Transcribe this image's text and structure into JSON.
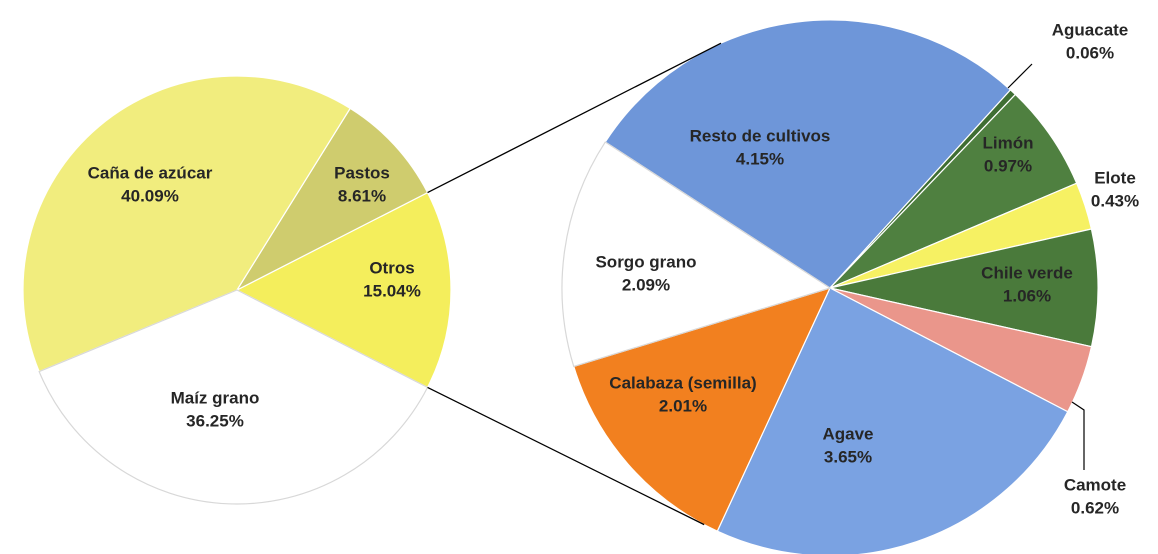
{
  "chart_data": [
    {
      "type": "pie",
      "categories": [
        "Otros",
        "Pastos",
        "Caña de azúcar",
        "Maíz grano"
      ],
      "values": [
        15.04,
        8.61,
        40.09,
        36.25
      ],
      "value_labels": [
        "15.04%",
        "8.61%",
        "40.09%",
        "36.25%"
      ],
      "colors": [
        "#f4ee5c",
        "#cfcc6e",
        "#f1ed7e",
        "#ffffff"
      ]
    },
    {
      "type": "pie",
      "categories": [
        "Resto de cultivos",
        "Aguacate",
        "Limón",
        "Elote",
        "Chile verde",
        "Camote",
        "Agave",
        "Calabaza (semilla)",
        "Sorgo grano"
      ],
      "values": [
        4.15,
        0.06,
        0.97,
        0.43,
        1.06,
        0.62,
        3.65,
        2.01,
        2.09
      ],
      "value_labels": [
        "4.15%",
        "0.06%",
        "0.97%",
        "0.43%",
        "1.06%",
        "0.62%",
        "3.65%",
        "2.01%",
        "2.09%"
      ],
      "colors": [
        "#6e96d9",
        "#3f6e33",
        "#4f8040",
        "#f6f163",
        "#4a7a3b",
        "#ea968b",
        "#7aa2e2",
        "#f2801f",
        "#ffffff"
      ]
    }
  ]
}
